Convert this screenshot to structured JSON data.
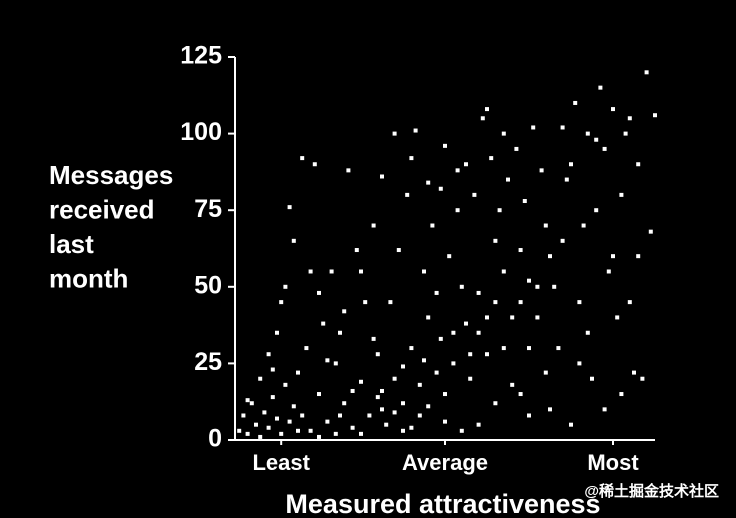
{
  "chart_data": {
    "type": "scatter",
    "ylabel": [
      "Messages",
      "received",
      "last",
      "month"
    ],
    "xlabel": "Measured attractiveness",
    "watermark": "@稀土掘金技术社区",
    "color": "#ffffff",
    "xlim": [
      0,
      100
    ],
    "xticks": [
      {
        "value": 11,
        "label": "Least"
      },
      {
        "value": 50,
        "label": "Average"
      },
      {
        "value": 90,
        "label": "Most"
      }
    ],
    "ylim": [
      0,
      125
    ],
    "yticks": [
      0,
      25,
      50,
      75,
      100,
      125
    ],
    "x": [
      1,
      2,
      3,
      4,
      5,
      6,
      7,
      8,
      9,
      10,
      11,
      12,
      13,
      14,
      15,
      3,
      6,
      8,
      10,
      12,
      13,
      14,
      11,
      9,
      15,
      16,
      19,
      18,
      20,
      17,
      16,
      18,
      20,
      22,
      24,
      26,
      28,
      30,
      32,
      34,
      21,
      23,
      25,
      27,
      29,
      31,
      33,
      35,
      22,
      26,
      30,
      33,
      35,
      28,
      24,
      36,
      38,
      40,
      42,
      44,
      46,
      48,
      50,
      52,
      54,
      37,
      39,
      41,
      43,
      45,
      47,
      49,
      51,
      53,
      55,
      40,
      44,
      48,
      52,
      55,
      38,
      46,
      50,
      53,
      42,
      56,
      58,
      60,
      62,
      64,
      66,
      68,
      70,
      72,
      74,
      57,
      59,
      61,
      63,
      65,
      67,
      69,
      71,
      73,
      75,
      58,
      62,
      66,
      70,
      74,
      60,
      64,
      68,
      72,
      75,
      76,
      78,
      80,
      82,
      84,
      86,
      88,
      90,
      92,
      94,
      96,
      98,
      100,
      77,
      79,
      81,
      83,
      85,
      87,
      89,
      91,
      93,
      95,
      97,
      99,
      80,
      84,
      88,
      92,
      86,
      90,
      94,
      78,
      82,
      96,
      30,
      34,
      38,
      42,
      46,
      50,
      54,
      20,
      25,
      45,
      35,
      40,
      49,
      56,
      60,
      64,
      68,
      70,
      58,
      62
    ],
    "values": [
      3,
      8,
      2,
      12,
      5,
      1,
      9,
      4,
      14,
      7,
      2,
      18,
      6,
      11,
      3,
      13,
      20,
      28,
      35,
      50,
      76,
      65,
      45,
      23,
      22,
      92,
      90,
      55,
      48,
      30,
      8,
      3,
      15,
      6,
      25,
      12,
      4,
      19,
      8,
      28,
      38,
      55,
      35,
      88,
      62,
      45,
      70,
      86,
      26,
      42,
      55,
      33,
      10,
      16,
      2,
      5,
      20,
      12,
      30,
      8,
      40,
      22,
      15,
      35,
      50,
      45,
      62,
      80,
      101,
      55,
      70,
      82,
      60,
      75,
      90,
      3,
      18,
      48,
      25,
      38,
      100,
      84,
      96,
      88,
      92,
      20,
      35,
      28,
      45,
      55,
      40,
      62,
      30,
      50,
      70,
      80,
      105,
      92,
      75,
      85,
      95,
      78,
      102,
      88,
      60,
      5,
      12,
      18,
      8,
      22,
      108,
      100,
      15,
      40,
      10,
      50,
      65,
      90,
      45,
      100,
      75,
      95,
      60,
      80,
      105,
      90,
      120,
      106,
      30,
      85,
      110,
      70,
      20,
      115,
      55,
      40,
      100,
      22,
      20,
      68,
      5,
      35,
      10,
      15,
      98,
      108,
      45,
      102,
      25,
      60,
      2,
      14,
      9,
      4,
      11,
      6,
      3,
      1,
      8,
      26,
      16,
      24,
      33,
      28,
      40,
      30,
      45,
      52,
      48,
      65
    ]
  }
}
